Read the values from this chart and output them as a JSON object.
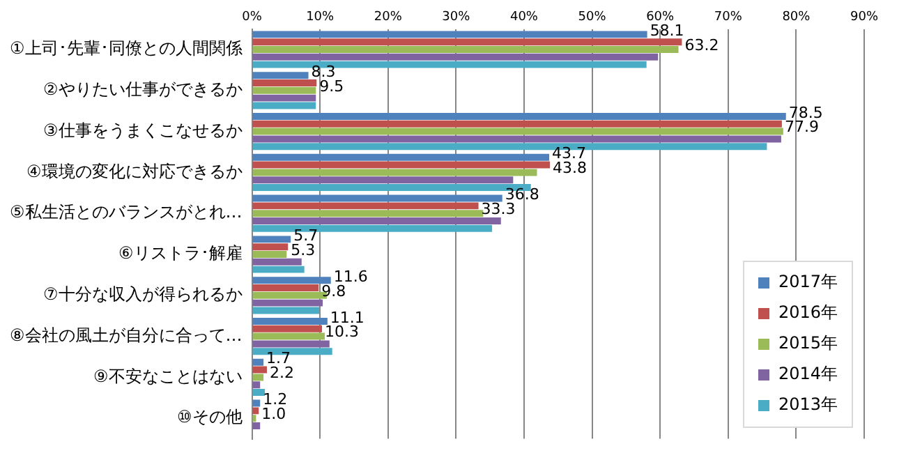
{
  "chart_data": {
    "type": "bar",
    "orientation": "horizontal",
    "categories": [
      "①上司･先輩･同僚との人間関係",
      "②やりたい仕事ができるか",
      "③仕事をうまくこなせるか",
      "④環境の変化に対応できるか",
      "⑤私生活とのバランスがとれ…",
      "⑥リストラ･解雇",
      "⑦十分な収入が得られるか",
      "⑧会社の風土が自分に合って…",
      "⑨不安なことはない",
      "⑩その他"
    ],
    "series": [
      {
        "name": "2017年",
        "color": "#4f81bd",
        "values": [
          58.1,
          8.3,
          78.5,
          43.7,
          36.8,
          5.7,
          11.6,
          11.1,
          1.7,
          1.2
        ],
        "value_labels": [
          "58.1",
          "8.3",
          "78.5",
          "43.7",
          "36.8",
          "5.7",
          "11.6",
          "11.1",
          "1.7",
          "1.2"
        ]
      },
      {
        "name": "2016年",
        "color": "#c0504d",
        "values": [
          63.2,
          9.5,
          77.9,
          43.8,
          33.3,
          5.3,
          9.8,
          10.3,
          2.2,
          1.0
        ],
        "value_labels": [
          "63.2",
          "9.5",
          "77.9",
          "43.8",
          "33.3",
          "5.3",
          "9.8",
          "10.3",
          "2.2",
          "1.0"
        ]
      },
      {
        "name": "2015年",
        "color": "#9bbb59",
        "values": [
          62.7,
          9.4,
          78.1,
          41.9,
          34.0,
          5.1,
          11.0,
          10.7,
          1.7,
          0.6
        ]
      },
      {
        "name": "2014年",
        "color": "#8064a2",
        "values": [
          59.7,
          9.4,
          77.8,
          38.4,
          36.6,
          7.3,
          10.4,
          11.4,
          1.2,
          1.2
        ]
      },
      {
        "name": "2013年",
        "color": "#4bacc6",
        "values": [
          58.0,
          9.4,
          75.7,
          41.0,
          35.3,
          7.7,
          9.9,
          11.8,
          1.9,
          0.0
        ]
      }
    ],
    "xlim": [
      0,
      90
    ],
    "xticks": [
      {
        "value": 0,
        "label": "0%"
      },
      {
        "value": 10,
        "label": "10%"
      },
      {
        "value": 20,
        "label": "20%"
      },
      {
        "value": 30,
        "label": "30%"
      },
      {
        "value": 40,
        "label": "40%"
      },
      {
        "value": 50,
        "label": "50%"
      },
      {
        "value": 60,
        "label": "60%"
      },
      {
        "value": 70,
        "label": "70%"
      },
      {
        "value": 80,
        "label": "80%"
      },
      {
        "value": 90,
        "label": "90%"
      }
    ],
    "grid": "x",
    "legend": "bottom right"
  }
}
